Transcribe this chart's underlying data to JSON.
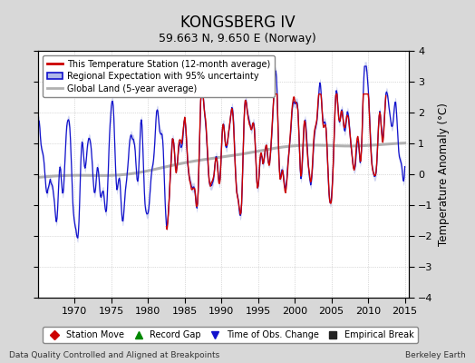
{
  "title": "KONGSBERG IV",
  "subtitle": "59.663 N, 9.650 E (Norway)",
  "ylabel": "Temperature Anomaly (°C)",
  "xlabel_left": "Data Quality Controlled and Aligned at Breakpoints",
  "xlabel_right": "Berkeley Earth",
  "ylim": [
    -4,
    4
  ],
  "xlim": [
    1965.0,
    2015.5
  ],
  "xticks": [
    1970,
    1975,
    1980,
    1985,
    1990,
    1995,
    2000,
    2005,
    2010,
    2015
  ],
  "yticks": [
    -4,
    -3,
    -2,
    -1,
    0,
    1,
    2,
    3,
    4
  ],
  "bg_color": "#d8d8d8",
  "plot_bg_color": "#ffffff",
  "grid_color": "#bbbbbb",
  "red_color": "#cc0000",
  "blue_color": "#1111cc",
  "blue_fill_color": "#b0b8e8",
  "gray_color": "#b0b0b0",
  "legend_station_label": "This Temperature Station (12-month average)",
  "legend_regional_label": "Regional Expectation with 95% uncertainty",
  "legend_global_label": "Global Land (5-year average)",
  "bottom_legend": [
    {
      "marker": "D",
      "color": "#cc0000",
      "label": "Station Move"
    },
    {
      "marker": "^",
      "color": "#008800",
      "label": "Record Gap"
    },
    {
      "marker": "v",
      "color": "#1111cc",
      "label": "Time of Obs. Change"
    },
    {
      "marker": "s",
      "color": "#222222",
      "label": "Empirical Break"
    }
  ]
}
